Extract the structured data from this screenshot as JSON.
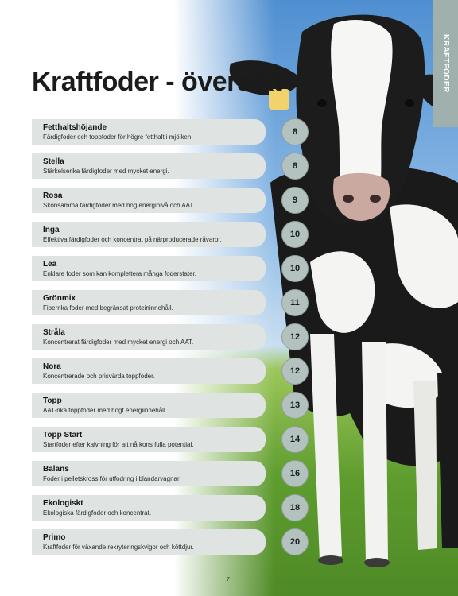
{
  "side_tab": "KRAFTFODER",
  "title": "Kraftfoder - översikt",
  "items": [
    {
      "name": "Fetthaltshöjande",
      "desc": "Färdigfoder och toppfoder för högre fetthalt i mjölken.",
      "page": "8"
    },
    {
      "name": "Stella",
      "desc": "Stärkelserika färdigfoder med mycket energi.",
      "page": "8"
    },
    {
      "name": "Rosa",
      "desc": "Skonsamma färdigfoder med hög energinivå och AAT.",
      "page": "9"
    },
    {
      "name": "Inga",
      "desc": "Effektiva färdigfoder och koncentrat på närproducerade råvaror.",
      "page": "10"
    },
    {
      "name": "Lea",
      "desc": "Enklare foder som kan komplettera många foderstater.",
      "page": "10"
    },
    {
      "name": "Grönmix",
      "desc": "Fiberrika foder med begränsat proteininnehåll.",
      "page": "11"
    },
    {
      "name": "Stråla",
      "desc": "Koncentrerat färdigfoder med mycket energi och AAT.",
      "page": "12"
    },
    {
      "name": "Nora",
      "desc": "Koncentrerade och prisvärda toppfoder.",
      "page": "12"
    },
    {
      "name": "Topp",
      "desc": "AAT-rika toppfoder med högt energiinnehåll.",
      "page": "13"
    },
    {
      "name": "Topp Start",
      "desc": "Startfoder efter kalvning för att nå kons fulla potential.",
      "page": "14"
    },
    {
      "name": "Balans",
      "desc": "Foder i pelletskross för utfodring i blandarvagnar.",
      "page": "16"
    },
    {
      "name": "Ekologiskt",
      "desc": "Ekologiska färdigfoder och koncentrat.",
      "page": "18"
    },
    {
      "name": "Primo",
      "desc": "Kraftfoder för växande rekryteringskvigor och köttdjur.",
      "page": "20"
    }
  ],
  "footer_page": "7"
}
